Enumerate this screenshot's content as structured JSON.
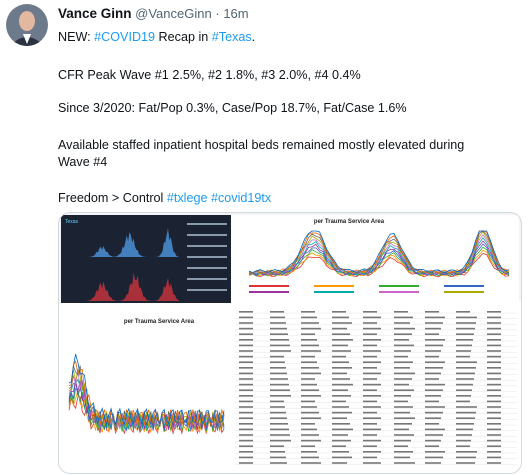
{
  "tweet": {
    "author": {
      "name": "Vance Ginn",
      "handle": "@VanceGinn",
      "separator": "·",
      "time": "16m"
    },
    "lines": [
      [
        {
          "text": "NEW: "
        },
        {
          "text": "#COVID19",
          "link": true
        },
        {
          "text": " Recap in "
        },
        {
          "text": "#Texas",
          "link": true
        },
        {
          "text": "."
        }
      ],
      [
        {
          "text": "CFR Peak Wave #1 2.5%, #2 1.8%, #3 2.0%, #4 0.4%"
        }
      ],
      [
        {
          "text": "Since 3/2020: Fat/Pop 0.3%, Case/Pop 18.7%, Fat/Case 1.6%"
        }
      ],
      [
        {
          "text": "Available staffed inpatient hospital beds remained mostly elevated during"
        }
      ],
      [
        {
          "text": "Wave #4"
        }
      ],
      [
        {
          "text": "Freedom >  Control "
        },
        {
          "text": "#txlege",
          "link": true
        },
        {
          "text": " "
        },
        {
          "text": "#covid19tx",
          "link": true
        }
      ]
    ],
    "image": {
      "panel_title_top": "per Trauma Service Area",
      "panel_title_bottom": "per Trauma Service Area",
      "region_label": "Texas"
    }
  }
}
